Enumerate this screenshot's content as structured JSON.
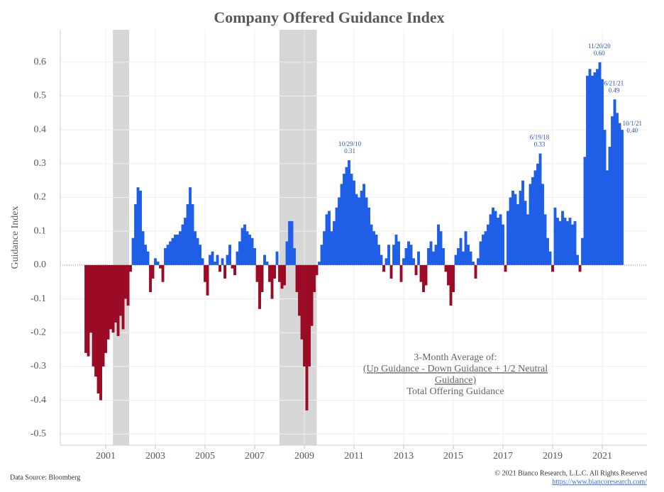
{
  "chart_data": {
    "type": "bar",
    "title": "Company Offered Guidance Index",
    "ylabel": "Guidance Index",
    "positive_color": "#1f5fe8",
    "negative_color": "#9c0b25",
    "shade_color": "#d6d6d6",
    "grid": true,
    "xlim": [
      1999.17,
      2022.8
    ],
    "xticks": [
      2001,
      2003,
      2005,
      2007,
      2009,
      2011,
      2013,
      2015,
      2017,
      2019,
      2021
    ],
    "ylim": [
      -0.533,
      0.696
    ],
    "yticks": [
      -0.5,
      -0.4,
      -0.3,
      -0.2,
      -0.1,
      {
        "value": 0,
        "label": "0.0"
      },
      0.1,
      0.2,
      0.3,
      0.4,
      0.5,
      0.6
    ],
    "shaded_periods": [
      [
        2001.29,
        2001.94
      ],
      [
        2008.0,
        2009.5
      ]
    ],
    "x": [
      2000.2,
      2000.3,
      2000.4,
      2000.5,
      2000.6,
      2000.7,
      2000.8,
      2000.9,
      2001.0,
      2001.1,
      2001.2,
      2001.3,
      2001.4,
      2001.5,
      2001.6,
      2001.7,
      2001.8,
      2001.9,
      2002.0,
      2002.1,
      2002.2,
      2002.3,
      2002.4,
      2002.5,
      2002.6,
      2002.7,
      2002.8,
      2002.9,
      2003.0,
      2003.1,
      2003.2,
      2003.3,
      2003.4,
      2003.5,
      2003.6,
      2003.7,
      2003.8,
      2003.9,
      2004.0,
      2004.1,
      2004.2,
      2004.3,
      2004.4,
      2004.5,
      2004.6,
      2004.7,
      2004.8,
      2004.9,
      2005.0,
      2005.1,
      2005.2,
      2005.3,
      2005.4,
      2005.5,
      2005.6,
      2005.7,
      2005.8,
      2005.9,
      2006.0,
      2006.1,
      2006.2,
      2006.3,
      2006.4,
      2006.5,
      2006.6,
      2006.7,
      2006.8,
      2006.9,
      2007.0,
      2007.1,
      2007.2,
      2007.3,
      2007.4,
      2007.5,
      2007.6,
      2007.7,
      2007.8,
      2007.9,
      2008.0,
      2008.1,
      2008.2,
      2008.3,
      2008.4,
      2008.5,
      2008.6,
      2008.7,
      2008.8,
      2008.9,
      2009.0,
      2009.1,
      2009.2,
      2009.3,
      2009.4,
      2009.5,
      2009.6,
      2009.7,
      2009.8,
      2009.9,
      2010.0,
      2010.1,
      2010.2,
      2010.3,
      2010.4,
      2010.5,
      2010.6,
      2010.7,
      2010.8,
      2010.9,
      2011.0,
      2011.1,
      2011.2,
      2011.3,
      2011.4,
      2011.5,
      2011.6,
      2011.7,
      2011.8,
      2011.9,
      2012.0,
      2012.1,
      2012.2,
      2012.3,
      2012.4,
      2012.5,
      2012.6,
      2012.7,
      2012.8,
      2012.9,
      2013.0,
      2013.1,
      2013.2,
      2013.3,
      2013.4,
      2013.5,
      2013.6,
      2013.7,
      2013.8,
      2013.9,
      2014.0,
      2014.1,
      2014.2,
      2014.3,
      2014.4,
      2014.5,
      2014.6,
      2014.7,
      2014.8,
      2014.9,
      2015.0,
      2015.1,
      2015.2,
      2015.3,
      2015.4,
      2015.5,
      2015.6,
      2015.7,
      2015.8,
      2015.9,
      2016.0,
      2016.1,
      2016.2,
      2016.3,
      2016.4,
      2016.5,
      2016.6,
      2016.7,
      2016.8,
      2016.9,
      2017.0,
      2017.1,
      2017.2,
      2017.3,
      2017.4,
      2017.5,
      2017.6,
      2017.7,
      2017.8,
      2017.9,
      2018.0,
      2018.1,
      2018.2,
      2018.3,
      2018.4,
      2018.5,
      2018.6,
      2018.7,
      2018.8,
      2018.9,
      2019.0,
      2019.1,
      2019.2,
      2019.3,
      2019.4,
      2019.5,
      2019.6,
      2019.7,
      2019.8,
      2019.9,
      2020.0,
      2020.1,
      2020.2,
      2020.3,
      2020.4,
      2020.5,
      2020.6,
      2020.7,
      2020.8,
      2020.9,
      2021.0,
      2021.1,
      2021.2,
      2021.3,
      2021.4,
      2021.5,
      2021.6,
      2021.7,
      2021.8
    ],
    "values": [
      -0.26,
      -0.27,
      -0.2,
      -0.3,
      -0.33,
      -0.38,
      -0.4,
      -0.3,
      -0.26,
      -0.22,
      -0.19,
      -0.2,
      -0.17,
      -0.21,
      -0.15,
      -0.19,
      -0.1,
      -0.12,
      -0.02,
      0.08,
      0.18,
      0.23,
      0.22,
      0.1,
      0.06,
      0.04,
      -0.08,
      -0.04,
      0.02,
      0.01,
      -0.01,
      -0.05,
      0.05,
      0.06,
      0.07,
      0.08,
      0.09,
      0.09,
      0.1,
      0.12,
      0.14,
      0.18,
      0.23,
      0.18,
      0.1,
      0.08,
      0.06,
      0.02,
      -0.05,
      -0.09,
      0.03,
      0.04,
      0.01,
      0.03,
      -0.02,
      0.02,
      -0.04,
      0.03,
      0.06,
      -0.01,
      -0.03,
      0.04,
      0.07,
      0.11,
      0.12,
      0.1,
      0.09,
      0.08,
      0.05,
      -0.05,
      -0.13,
      -0.08,
      0.03,
      0.01,
      -0.05,
      -0.1,
      -0.04,
      0.04,
      -0.05,
      -0.07,
      -0.06,
      0.07,
      0.13,
      0.13,
      0.05,
      -0.08,
      -0.15,
      -0.22,
      -0.3,
      -0.43,
      -0.3,
      -0.18,
      -0.08,
      -0.03,
      0.01,
      0.06,
      0.1,
      0.15,
      0.16,
      0.1,
      0.13,
      0.17,
      0.2,
      0.24,
      0.27,
      0.29,
      0.31,
      0.27,
      0.25,
      0.21,
      0.2,
      0.22,
      0.24,
      0.2,
      0.17,
      0.12,
      0.1,
      0.09,
      0.06,
      0.03,
      -0.02,
      0.02,
      0.06,
      -0.04,
      0.06,
      0.09,
      0.07,
      -0.05,
      0.02,
      0.05,
      0.07,
      0.06,
      0.02,
      -0.03,
      0.04,
      -0.05,
      -0.08,
      -0.06,
      0.05,
      0.07,
      0.04,
      0.06,
      0.12,
      0.1,
      0.05,
      -0.02,
      -0.06,
      -0.12,
      -0.08,
      0.03,
      0.05,
      0.08,
      0.04,
      0.1,
      0.06,
      0.04,
      0.01,
      -0.04,
      0.02,
      0.07,
      0.09,
      0.1,
      0.12,
      0.15,
      0.17,
      0.16,
      0.14,
      0.15,
      0.12,
      -0.02,
      0.16,
      0.2,
      0.22,
      0.21,
      0.18,
      0.22,
      0.25,
      0.19,
      0.15,
      0.24,
      0.26,
      0.28,
      0.3,
      0.33,
      0.24,
      0.15,
      0.08,
      0.04,
      -0.02,
      0.17,
      0.14,
      0.13,
      0.16,
      0.14,
      0.13,
      0.14,
      0.12,
      0.13,
      0.03,
      -0.02,
      0.08,
      0.32,
      0.56,
      0.58,
      0.56,
      0.57,
      0.58,
      0.6,
      0.55,
      0.4,
      0.28,
      0.35,
      0.44,
      0.49,
      0.45,
      0.42,
      0.4
    ],
    "annotations": [
      {
        "date": "10/29/10",
        "label": "0.31",
        "x": 2010.83,
        "y": 0.31
      },
      {
        "date": "6/19/18",
        "label": "0.33",
        "x": 2018.47,
        "y": 0.33
      },
      {
        "date": "11/20/20",
        "label": "0.60",
        "x": 2020.88,
        "y": 0.6
      },
      {
        "date": "6/21/21",
        "label": "0.49",
        "x": 2021.47,
        "y": 0.49
      },
      {
        "date": "10/1/21",
        "label": "0.40",
        "x": 2021.75,
        "y": 0.4
      }
    ],
    "note": {
      "lines": [
        "3-Month Average of:",
        "(Up Guidance - Down Guidance + 1/2 Neutral",
        "Guidance)",
        "Total Offering Guidance"
      ],
      "underlined": [
        1,
        2
      ]
    },
    "source": "Data Source: Bloomberg",
    "copyright": "© 2021 Bianco Research, L.L.C. All Rights Reserved",
    "url": "https://www.biancoresearch.com/"
  }
}
